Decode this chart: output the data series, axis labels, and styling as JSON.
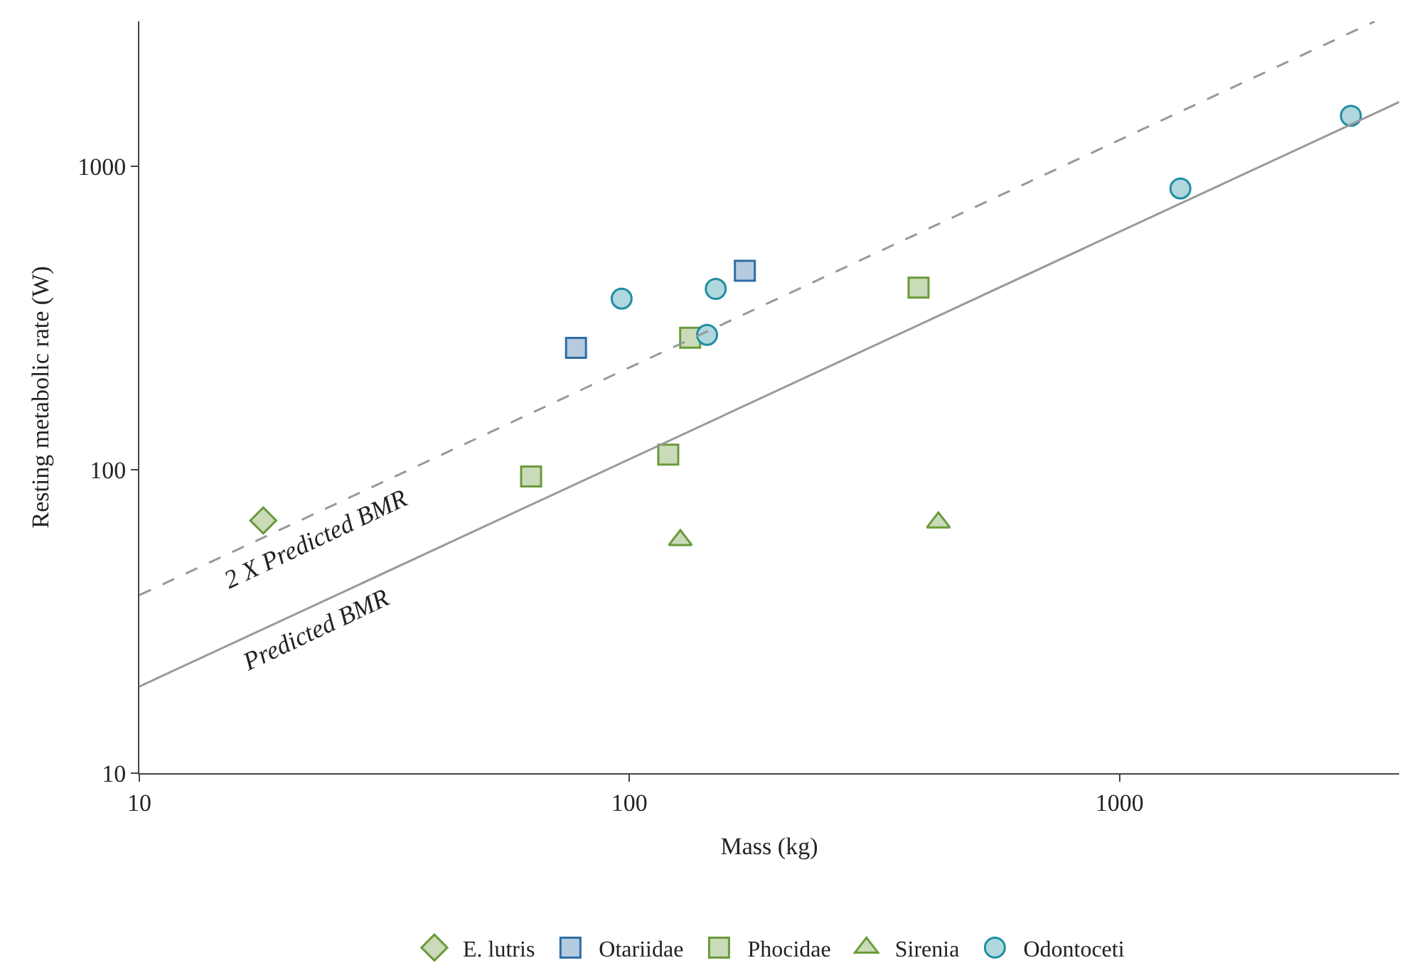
{
  "chart_data": {
    "type": "scatter",
    "xlabel": "Mass (kg)",
    "ylabel": "Resting metabolic rate (W)",
    "log": "xy",
    "xlim": [
      10,
      3720
    ],
    "ylim": [
      10,
      3000
    ],
    "xticks": [
      10,
      100,
      1000
    ],
    "yticks": [
      10,
      100,
      1000
    ],
    "legend": "bottom",
    "series": [
      {
        "name": "E. lutris",
        "color": "#6a9a3a",
        "marker": "diamond",
        "x": [
          17.9
        ],
        "values": [
          68
        ]
      },
      {
        "name": "Otariidae",
        "color": "#2e6da4",
        "marker": "square",
        "x": [
          77.8,
          172
        ],
        "values": [
          252,
          452
        ]
      },
      {
        "name": "Phocidae",
        "color": "#6a9a3a",
        "marker": "square",
        "x": [
          63,
          120,
          133,
          389
        ],
        "values": [
          95,
          112,
          272,
          398
        ]
      },
      {
        "name": "Sirenia",
        "color": "#6a9a3a",
        "marker": "triangle",
        "x": [
          127,
          427
        ],
        "values": [
          58.6,
          67
        ]
      },
      {
        "name": "Odontoceti",
        "color": "#1f8ea3",
        "marker": "circle",
        "x": [
          96.4,
          150,
          144,
          1331,
          2965
        ],
        "values": [
          366,
          394,
          278,
          844,
          1465
        ]
      },
      {
        "type": "line",
        "name": "Predicted BMR",
        "color": "#999999",
        "line_style": "solid",
        "marker": "none",
        "x": [
          10,
          3720
        ],
        "values": [
          19.3,
          1626
        ]
      },
      {
        "type": "line",
        "name": "2 X Predicted BMR",
        "color": "#999999",
        "line_style": "dashed",
        "marker": "none",
        "x": [
          10,
          3320
        ],
        "values": [
          38.6,
          3000
        ]
      }
    ]
  }
}
